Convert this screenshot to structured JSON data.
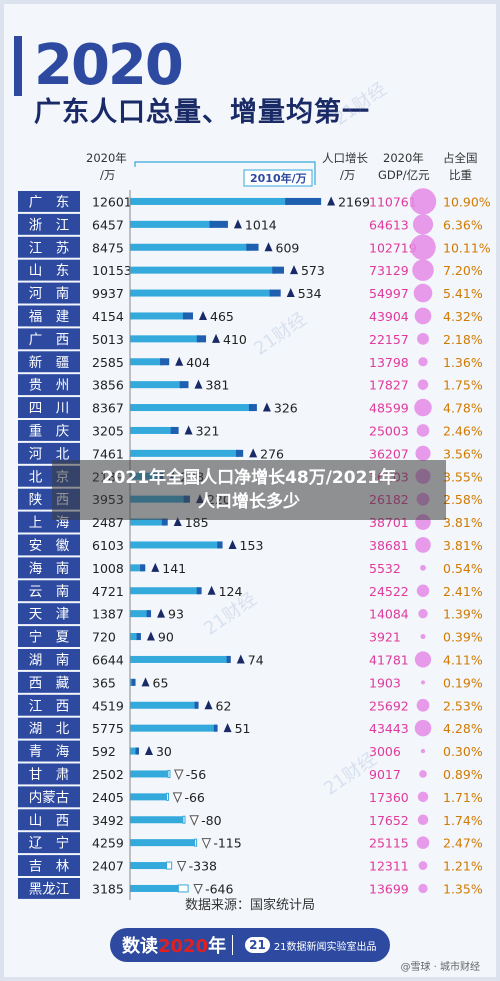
{
  "header": {
    "year": "2020",
    "title": "广东人口总量、增量均第一"
  },
  "columns": {
    "pop_label_1": "2020年",
    "pop_label_2": "/万",
    "bar_legend": "2010年/万",
    "inc_label_1": "人口增长",
    "inc_label_2": "/万",
    "gdp_label_1": "2020年",
    "gdp_label_2": "GDP/亿元",
    "share_label_1": "占全国",
    "share_label_2": "比重"
  },
  "chart_data": {
    "type": "bar",
    "xlim": [
      0,
      12000
    ],
    "xticks": [
      "0",
      "3000",
      "6000",
      "9000",
      "12000"
    ],
    "rows": [
      {
        "province": "广东",
        "pop2020": 12601,
        "inc": 2169,
        "gdp": "110761",
        "share": "10.90%"
      },
      {
        "province": "浙江",
        "pop2020": 6457,
        "inc": 1014,
        "gdp": "64613",
        "share": "6.36%"
      },
      {
        "province": "江苏",
        "pop2020": 8475,
        "inc": 609,
        "gdp": "102719",
        "share": "10.11%"
      },
      {
        "province": "山东",
        "pop2020": 10153,
        "inc": 573,
        "gdp": "73129",
        "share": "7.20%"
      },
      {
        "province": "河南",
        "pop2020": 9937,
        "inc": 534,
        "gdp": "54997",
        "share": "5.41%"
      },
      {
        "province": "福建",
        "pop2020": 4154,
        "inc": 465,
        "gdp": "43904",
        "share": "4.32%"
      },
      {
        "province": "广西",
        "pop2020": 5013,
        "inc": 410,
        "gdp": "22157",
        "share": "2.18%"
      },
      {
        "province": "新疆",
        "pop2020": 2585,
        "inc": 404,
        "gdp": "13798",
        "share": "1.36%"
      },
      {
        "province": "贵州",
        "pop2020": 3856,
        "inc": 381,
        "gdp": "17827",
        "share": "1.75%"
      },
      {
        "province": "四川",
        "pop2020": 8367,
        "inc": 326,
        "gdp": "48599",
        "share": "4.78%"
      },
      {
        "province": "重庆",
        "pop2020": 3205,
        "inc": 321,
        "gdp": "25003",
        "share": "2.46%"
      },
      {
        "province": "河北",
        "pop2020": 7461,
        "inc": 276,
        "gdp": "36207",
        "share": "3.56%"
      },
      {
        "province": "北京",
        "pop2020": 2189,
        "inc": 228,
        "gdp": "36103",
        "share": "3.55%"
      },
      {
        "province": "陕西",
        "pop2020": 3953,
        "inc": 220,
        "gdp": "26182",
        "share": "2.58%"
      },
      {
        "province": "上海",
        "pop2020": 2487,
        "inc": 185,
        "gdp": "38701",
        "share": "3.81%"
      },
      {
        "province": "安徽",
        "pop2020": 6103,
        "inc": 153,
        "gdp": "38681",
        "share": "3.81%"
      },
      {
        "province": "海南",
        "pop2020": 1008,
        "inc": 141,
        "gdp": "5532",
        "share": "0.54%"
      },
      {
        "province": "云南",
        "pop2020": 4721,
        "inc": 124,
        "gdp": "24522",
        "share": "2.41%"
      },
      {
        "province": "天津",
        "pop2020": 1387,
        "inc": 93,
        "gdp": "14084",
        "share": "1.39%"
      },
      {
        "province": "宁夏",
        "pop2020": 720,
        "inc": 90,
        "gdp": "3921",
        "share": "0.39%"
      },
      {
        "province": "湖南",
        "pop2020": 6644,
        "inc": 74,
        "gdp": "41781",
        "share": "4.11%"
      },
      {
        "province": "西藏",
        "pop2020": 365,
        "inc": 65,
        "gdp": "1903",
        "share": "0.19%"
      },
      {
        "province": "江西",
        "pop2020": 4519,
        "inc": 62,
        "gdp": "25692",
        "share": "2.53%"
      },
      {
        "province": "湖北",
        "pop2020": 5775,
        "inc": 51,
        "gdp": "43443",
        "share": "4.28%"
      },
      {
        "province": "青海",
        "pop2020": 592,
        "inc": 30,
        "gdp": "3006",
        "share": "0.30%"
      },
      {
        "province": "甘肃",
        "pop2020": 2502,
        "inc": -56,
        "gdp": "9017",
        "share": "0.89%"
      },
      {
        "province": "内蒙古",
        "pop2020": 2405,
        "inc": -66,
        "gdp": "17360",
        "share": "1.71%"
      },
      {
        "province": "山西",
        "pop2020": 3492,
        "inc": -80,
        "gdp": "17652",
        "share": "1.74%"
      },
      {
        "province": "辽宁",
        "pop2020": 4259,
        "inc": -115,
        "gdp": "25115",
        "share": "2.47%"
      },
      {
        "province": "吉林",
        "pop2020": 2407,
        "inc": -338,
        "gdp": "12311",
        "share": "1.21%"
      },
      {
        "province": "黑龙江",
        "pop2020": 3185,
        "inc": -646,
        "gdp": "13699",
        "share": "1.35%"
      }
    ]
  },
  "colors": {
    "navy": "#2d4aa0",
    "bar": "#34a9dc",
    "bar_light": "#a9def5",
    "gdp": "#e03a9c",
    "share": "#d07a00",
    "bubble": "#e48ae6"
  },
  "overlay": {
    "line1": "2021年全国人口净增长48万/2021年",
    "line2": "人口增长多少"
  },
  "footer": {
    "source": "数据来源：国家统计局",
    "logo_a": "数读",
    "logo_b": "2020",
    "logo_c": "年",
    "badge": "21",
    "org": "21数据新闻实验室出品",
    "credit": "@雪球 · 城市财经"
  },
  "watermark": "21财经"
}
